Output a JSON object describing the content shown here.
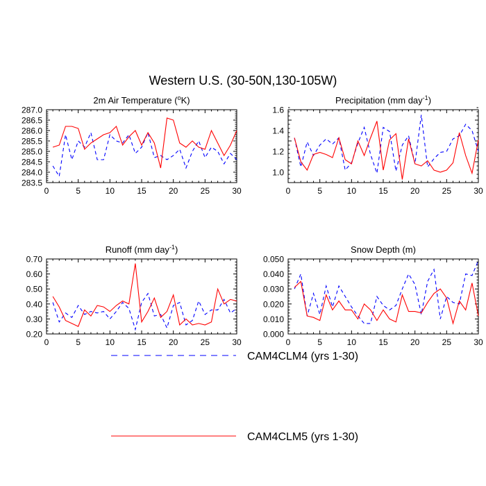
{
  "title": "Western U.S. (30-50N,130-105W)",
  "legend": {
    "placement": "bottom-center",
    "entries": [
      {
        "label": "CAM4CLM4 (yrs 1-30)",
        "color": "#0000ff",
        "style": "dashed"
      },
      {
        "label": "CAM4CLM5 (yrs 1-30)",
        "color": "#ff0000",
        "style": "solid"
      }
    ]
  },
  "chart_data": [
    {
      "type": "line",
      "title_main": "2m Air Temperature (",
      "title_sup": "o",
      "title_end": "K)",
      "xlim": [
        0,
        30
      ],
      "ylim": [
        283.5,
        287.0
      ],
      "xticks": [
        0,
        5,
        10,
        15,
        20,
        25,
        30
      ],
      "xtick_labels": [
        "0",
        "5",
        "10",
        "15",
        "20",
        "25",
        "30"
      ],
      "yticks": [
        283.5,
        284.0,
        284.5,
        285.0,
        285.5,
        286.0,
        286.5,
        287.0
      ],
      "ytick_labels": [
        "283.5",
        "284.0",
        "284.5",
        "285.0",
        "285.5",
        "286.0",
        "286.5",
        "287.0"
      ],
      "x": [
        1,
        2,
        3,
        4,
        5,
        6,
        7,
        8,
        9,
        10,
        11,
        12,
        13,
        14,
        15,
        16,
        17,
        18,
        19,
        20,
        21,
        22,
        23,
        24,
        25,
        26,
        27,
        28,
        29,
        30
      ],
      "series": [
        {
          "color": "#0000ff",
          "dashed": true,
          "values": [
            284.3,
            283.8,
            285.8,
            284.6,
            285.5,
            285.2,
            285.9,
            284.6,
            284.6,
            285.8,
            285.5,
            285.4,
            285.8,
            284.9,
            285.2,
            285.9,
            284.7,
            284.8,
            284.6,
            284.8,
            285.1,
            284.2,
            285.0,
            285.5,
            284.7,
            285.2,
            285.0,
            284.4,
            284.9,
            284.6
          ]
        },
        {
          "color": "#ff0000",
          "dashed": false,
          "values": [
            285.2,
            285.3,
            286.2,
            286.2,
            286.1,
            285.1,
            285.4,
            285.6,
            285.8,
            285.9,
            286.2,
            285.3,
            285.7,
            286.0,
            285.3,
            285.9,
            285.4,
            284.2,
            286.6,
            286.5,
            285.4,
            285.2,
            285.5,
            285.2,
            285.1,
            286.0,
            285.4,
            284.8,
            285.3,
            286.0
          ]
        }
      ]
    },
    {
      "type": "line",
      "title_main": "Precipitation (mm day",
      "title_sup": "-1",
      "title_end": ")",
      "xlim": [
        0,
        30
      ],
      "ylim": [
        0.9,
        1.6
      ],
      "xticks": [
        0,
        5,
        10,
        15,
        20,
        25,
        30
      ],
      "xtick_labels": [
        "0",
        "5",
        "10",
        "15",
        "20",
        "25",
        "30"
      ],
      "yticks": [
        1.0,
        1.2,
        1.4,
        1.6
      ],
      "ytick_labels": [
        "1.0",
        "1.2",
        "1.4",
        "1.6"
      ],
      "x": [
        1,
        2,
        3,
        4,
        5,
        6,
        7,
        8,
        9,
        10,
        11,
        12,
        13,
        14,
        15,
        16,
        17,
        18,
        19,
        20,
        21,
        22,
        23,
        24,
        25,
        26,
        27,
        28,
        29,
        30
      ],
      "series": [
        {
          "color": "#0000ff",
          "dashed": true,
          "values": [
            1.33,
            1.05,
            1.29,
            1.16,
            1.26,
            1.32,
            1.27,
            1.33,
            1.02,
            1.09,
            1.28,
            1.43,
            1.17,
            0.99,
            1.43,
            1.39,
            1.01,
            1.26,
            1.35,
            1.08,
            1.55,
            1.05,
            1.13,
            1.19,
            1.2,
            1.32,
            1.35,
            1.46,
            1.4,
            1.2
          ]
        },
        {
          "color": "#ff0000",
          "dashed": false,
          "values": [
            1.33,
            1.1,
            1.02,
            1.17,
            1.19,
            1.17,
            1.14,
            1.33,
            1.12,
            1.08,
            1.3,
            1.16,
            1.33,
            1.49,
            1.02,
            1.31,
            1.37,
            0.93,
            1.32,
            1.08,
            1.06,
            1.11,
            1.02,
            1.0,
            1.02,
            1.09,
            1.38,
            1.16,
            0.99,
            1.31
          ]
        }
      ]
    },
    {
      "type": "line",
      "title_main": "Runoff (mm day",
      "title_sup": "-1",
      "title_end": ")",
      "xlim": [
        0,
        30
      ],
      "ylim": [
        0.2,
        0.7
      ],
      "xticks": [
        0,
        5,
        10,
        15,
        20,
        25,
        30
      ],
      "xtick_labels": [
        "0",
        "5",
        "10",
        "15",
        "20",
        "25",
        "30"
      ],
      "yticks": [
        0.2,
        0.3,
        0.4,
        0.5,
        0.6,
        0.7
      ],
      "ytick_labels": [
        "0.20",
        "0.30",
        "0.40",
        "0.50",
        "0.60",
        "0.70"
      ],
      "x": [
        1,
        2,
        3,
        4,
        5,
        6,
        7,
        8,
        9,
        10,
        11,
        12,
        13,
        14,
        15,
        16,
        17,
        18,
        19,
        20,
        21,
        22,
        23,
        24,
        25,
        26,
        27,
        28,
        29,
        30
      ],
      "series": [
        {
          "color": "#0000ff",
          "dashed": true,
          "values": [
            0.41,
            0.28,
            0.34,
            0.31,
            0.39,
            0.33,
            0.35,
            0.34,
            0.35,
            0.3,
            0.35,
            0.41,
            0.37,
            0.23,
            0.41,
            0.47,
            0.32,
            0.33,
            0.24,
            0.39,
            0.41,
            0.26,
            0.29,
            0.42,
            0.33,
            0.36,
            0.36,
            0.43,
            0.34,
            0.37
          ]
        },
        {
          "color": "#ff0000",
          "dashed": false,
          "values": [
            0.45,
            0.38,
            0.29,
            0.27,
            0.25,
            0.36,
            0.32,
            0.39,
            0.38,
            0.35,
            0.39,
            0.42,
            0.4,
            0.67,
            0.28,
            0.35,
            0.44,
            0.31,
            0.35,
            0.46,
            0.26,
            0.3,
            0.26,
            0.27,
            0.26,
            0.28,
            0.5,
            0.4,
            0.43,
            0.42
          ]
        }
      ]
    },
    {
      "type": "line",
      "title_main": "Snow Depth (m)",
      "title_sup": "",
      "title_end": "",
      "xlim": [
        0,
        30
      ],
      "ylim": [
        0.0,
        0.05
      ],
      "xticks": [
        0,
        5,
        10,
        15,
        20,
        25,
        30
      ],
      "xtick_labels": [
        "0",
        "5",
        "10",
        "15",
        "20",
        "25",
        "30"
      ],
      "yticks": [
        0.0,
        0.01,
        0.02,
        0.03,
        0.04,
        0.05
      ],
      "ytick_labels": [
        "0.000",
        "0.010",
        "0.020",
        "0.030",
        "0.040",
        "0.050"
      ],
      "x": [
        1,
        2,
        3,
        4,
        5,
        6,
        7,
        8,
        9,
        10,
        11,
        12,
        13,
        14,
        15,
        16,
        17,
        18,
        19,
        20,
        21,
        22,
        23,
        24,
        25,
        26,
        27,
        28,
        29,
        30
      ],
      "series": [
        {
          "color": "#0000ff",
          "dashed": true,
          "values": [
            0.03,
            0.04,
            0.012,
            0.027,
            0.013,
            0.032,
            0.018,
            0.032,
            0.025,
            0.018,
            0.012,
            0.007,
            0.007,
            0.025,
            0.019,
            0.016,
            0.019,
            0.03,
            0.04,
            0.033,
            0.013,
            0.035,
            0.043,
            0.01,
            0.025,
            0.021,
            0.02,
            0.04,
            0.039,
            0.049
          ]
        },
        {
          "color": "#ff0000",
          "dashed": false,
          "values": [
            0.031,
            0.035,
            0.012,
            0.011,
            0.009,
            0.026,
            0.016,
            0.022,
            0.016,
            0.016,
            0.01,
            0.02,
            0.016,
            0.009,
            0.016,
            0.01,
            0.008,
            0.026,
            0.015,
            0.015,
            0.014,
            0.021,
            0.027,
            0.03,
            0.024,
            0.007,
            0.022,
            0.016,
            0.034,
            0.012
          ]
        }
      ]
    }
  ]
}
